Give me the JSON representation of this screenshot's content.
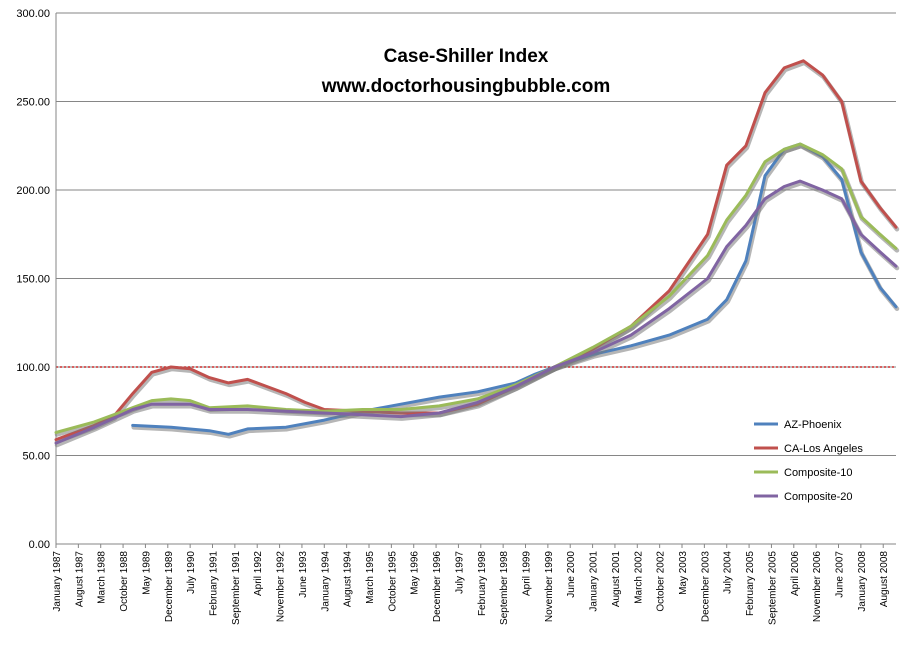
{
  "chart_data": {
    "type": "line",
    "title": "Case-Shiller Index",
    "subtitle": "www.doctorhousingbubble.com",
    "xlabel": "",
    "ylabel": "",
    "ylim": [
      0,
      300
    ],
    "y_ticks": [
      "0.00",
      "50.00",
      "100.00",
      "150.00",
      "200.00",
      "250.00",
      "300.00"
    ],
    "grid": true,
    "reference_line": {
      "y": 100,
      "color": "#c00000",
      "style": "dotted"
    },
    "legend_position": "right",
    "x_tick_labels": [
      "January 1987",
      "August 1987",
      "March 1988",
      "October 1988",
      "May 1989",
      "December 1989",
      "July 1990",
      "February 1991",
      "September 1991",
      "April 1992",
      "November 1992",
      "June 1993",
      "January 1994",
      "August 1994",
      "March 1995",
      "October 1995",
      "May 1996",
      "December 1996",
      "July 1997",
      "February 1998",
      "September 1998",
      "April 1999",
      "November 1999",
      "June 2000",
      "January 2001",
      "August 2001",
      "March 2002",
      "October 2002",
      "May 2003",
      "December 2003",
      "July 2004",
      "February 2005",
      "September 2005",
      "April 2006",
      "November 2006",
      "June 2007",
      "January 2008",
      "August 2008"
    ],
    "x_start": "1987-01",
    "x_end": "2008-12",
    "series": [
      {
        "name": "AZ-Phoenix",
        "color": "#4f81bd",
        "points": [
          [
            "1989-01",
            67
          ],
          [
            "1990-01",
            66
          ],
          [
            "1991-01",
            64
          ],
          [
            "1991-07",
            62
          ],
          [
            "1992-01",
            65
          ],
          [
            "1993-01",
            66
          ],
          [
            "1994-01",
            70
          ],
          [
            "1995-01",
            75
          ],
          [
            "1996-01",
            79
          ],
          [
            "1997-01",
            83
          ],
          [
            "1998-01",
            86
          ],
          [
            "1999-01",
            91
          ],
          [
            "1999-07",
            96
          ],
          [
            "2000-01",
            100
          ],
          [
            "2001-01",
            107
          ],
          [
            "2002-01",
            112
          ],
          [
            "2003-01",
            118
          ],
          [
            "2004-01",
            127
          ],
          [
            "2004-07",
            138
          ],
          [
            "2005-01",
            160
          ],
          [
            "2005-07",
            208
          ],
          [
            "2006-01",
            223
          ],
          [
            "2006-06",
            226
          ],
          [
            "2007-01",
            219
          ],
          [
            "2007-07",
            206
          ],
          [
            "2008-01",
            165
          ],
          [
            "2008-07",
            145
          ],
          [
            "2008-12",
            134
          ]
        ]
      },
      {
        "name": "CA-Los Angeles",
        "color": "#c0504d",
        "points": [
          [
            "1987-01",
            59
          ],
          [
            "1988-01",
            67
          ],
          [
            "1988-07",
            72
          ],
          [
            "1989-01",
            85
          ],
          [
            "1989-07",
            97
          ],
          [
            "1990-01",
            100
          ],
          [
            "1990-07",
            99
          ],
          [
            "1991-01",
            94
          ],
          [
            "1991-07",
            91
          ],
          [
            "1992-01",
            93
          ],
          [
            "1992-07",
            89
          ],
          [
            "1993-01",
            85
          ],
          [
            "1993-07",
            80
          ],
          [
            "1994-01",
            76
          ],
          [
            "1995-01",
            75
          ],
          [
            "1996-01",
            74
          ],
          [
            "1997-01",
            74
          ],
          [
            "1998-01",
            79
          ],
          [
            "1999-01",
            89
          ],
          [
            "2000-01",
            100
          ],
          [
            "2001-01",
            110
          ],
          [
            "2002-01",
            123
          ],
          [
            "2003-01",
            143
          ],
          [
            "2004-01",
            175
          ],
          [
            "2004-07",
            214
          ],
          [
            "2005-01",
            225
          ],
          [
            "2005-07",
            255
          ],
          [
            "2006-01",
            269
          ],
          [
            "2006-07",
            273
          ],
          [
            "2007-01",
            265
          ],
          [
            "2007-07",
            250
          ],
          [
            "2008-01",
            205
          ],
          [
            "2008-07",
            190
          ],
          [
            "2008-12",
            179
          ]
        ]
      },
      {
        "name": "Composite-10",
        "color": "#9bbb59",
        "points": [
          [
            "1987-01",
            63
          ],
          [
            "1988-01",
            69
          ],
          [
            "1989-01",
            77
          ],
          [
            "1989-07",
            81
          ],
          [
            "1990-01",
            82
          ],
          [
            "1990-07",
            81
          ],
          [
            "1991-01",
            77
          ],
          [
            "1992-01",
            78
          ],
          [
            "1993-01",
            76
          ],
          [
            "1994-01",
            75
          ],
          [
            "1995-01",
            76
          ],
          [
            "1996-01",
            76
          ],
          [
            "1997-01",
            78
          ],
          [
            "1998-01",
            82
          ],
          [
            "1999-01",
            90
          ],
          [
            "2000-01",
            100
          ],
          [
            "2001-01",
            111
          ],
          [
            "2002-01",
            123
          ],
          [
            "2003-01",
            140
          ],
          [
            "2004-01",
            163
          ],
          [
            "2004-07",
            183
          ],
          [
            "2005-01",
            197
          ],
          [
            "2005-07",
            216
          ],
          [
            "2006-01",
            223
          ],
          [
            "2006-06",
            226
          ],
          [
            "2007-01",
            220
          ],
          [
            "2007-07",
            212
          ],
          [
            "2008-01",
            185
          ],
          [
            "2008-07",
            175
          ],
          [
            "2008-12",
            167
          ]
        ]
      },
      {
        "name": "Composite-20",
        "color": "#8064a2",
        "points": [
          [
            "1987-01",
            57
          ],
          [
            "1988-01",
            66
          ],
          [
            "1989-01",
            76
          ],
          [
            "1989-07",
            79
          ],
          [
            "1990-01",
            79
          ],
          [
            "1990-07",
            79
          ],
          [
            "1991-01",
            76
          ],
          [
            "1992-01",
            76
          ],
          [
            "1993-01",
            75
          ],
          [
            "1994-01",
            74
          ],
          [
            "1995-01",
            73
          ],
          [
            "1996-01",
            72
          ],
          [
            "1997-01",
            74
          ],
          [
            "1998-01",
            80
          ],
          [
            "1999-01",
            89
          ],
          [
            "2000-01",
            100
          ],
          [
            "2001-01",
            108
          ],
          [
            "2002-01",
            118
          ],
          [
            "2003-01",
            133
          ],
          [
            "2004-01",
            150
          ],
          [
            "2004-07",
            168
          ],
          [
            "2005-01",
            180
          ],
          [
            "2005-07",
            195
          ],
          [
            "2006-01",
            202
          ],
          [
            "2006-06",
            205
          ],
          [
            "2007-01",
            200
          ],
          [
            "2007-07",
            195
          ],
          [
            "2008-01",
            175
          ],
          [
            "2008-07",
            165
          ],
          [
            "2008-12",
            157
          ]
        ]
      }
    ]
  }
}
